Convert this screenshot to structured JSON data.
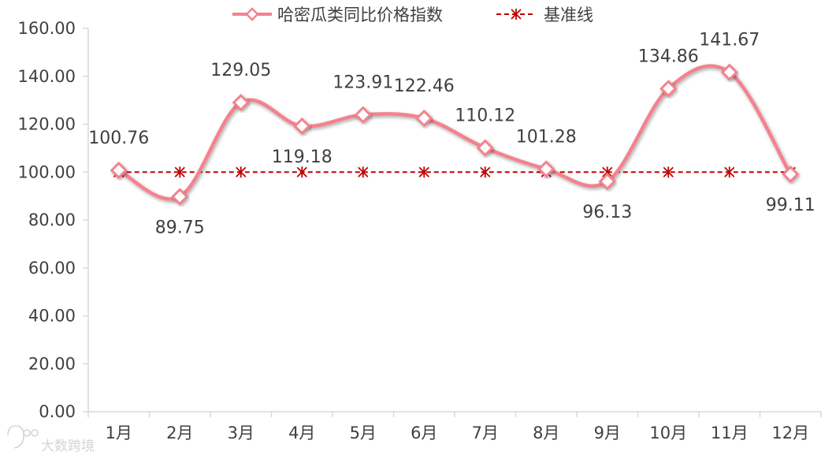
{
  "chart_data": {
    "type": "line",
    "title": "",
    "xlabel": "",
    "ylabel": "",
    "categories": [
      "1月",
      "2月",
      "3月",
      "4月",
      "5月",
      "6月",
      "7月",
      "8月",
      "9月",
      "10月",
      "11月",
      "12月"
    ],
    "series": [
      {
        "name": "哈密瓜类同比价格指数",
        "values": [
          100.76,
          89.75,
          129.05,
          119.18,
          123.91,
          122.46,
          110.12,
          101.28,
          96.13,
          134.86,
          141.67,
          99.11
        ],
        "data_labels": [
          "100.76",
          "89.75",
          "129.05",
          "119.18",
          "123.91",
          "122.46",
          "110.12",
          "101.28",
          "96.13",
          "134.86",
          "141.67",
          "99.11"
        ],
        "color": "#f4828e",
        "marker": "diamond",
        "smooth": true
      },
      {
        "name": "基准线",
        "values": [
          100,
          100,
          100,
          100,
          100,
          100,
          100,
          100,
          100,
          100,
          100,
          100
        ],
        "color": "#c00000",
        "marker": "asterisk",
        "dashed": true
      }
    ],
    "ylim": [
      0,
      160
    ],
    "yticks": [
      "0.00",
      "20.00",
      "40.00",
      "60.00",
      "80.00",
      "100.00",
      "120.00",
      "140.00",
      "160.00"
    ],
    "ytick_values": [
      0,
      20,
      40,
      60,
      80,
      100,
      120,
      140,
      160
    ],
    "grid": false,
    "legend_position": "top"
  },
  "watermark": {
    "text": "大数跨境",
    "icon": "logo-icon"
  }
}
